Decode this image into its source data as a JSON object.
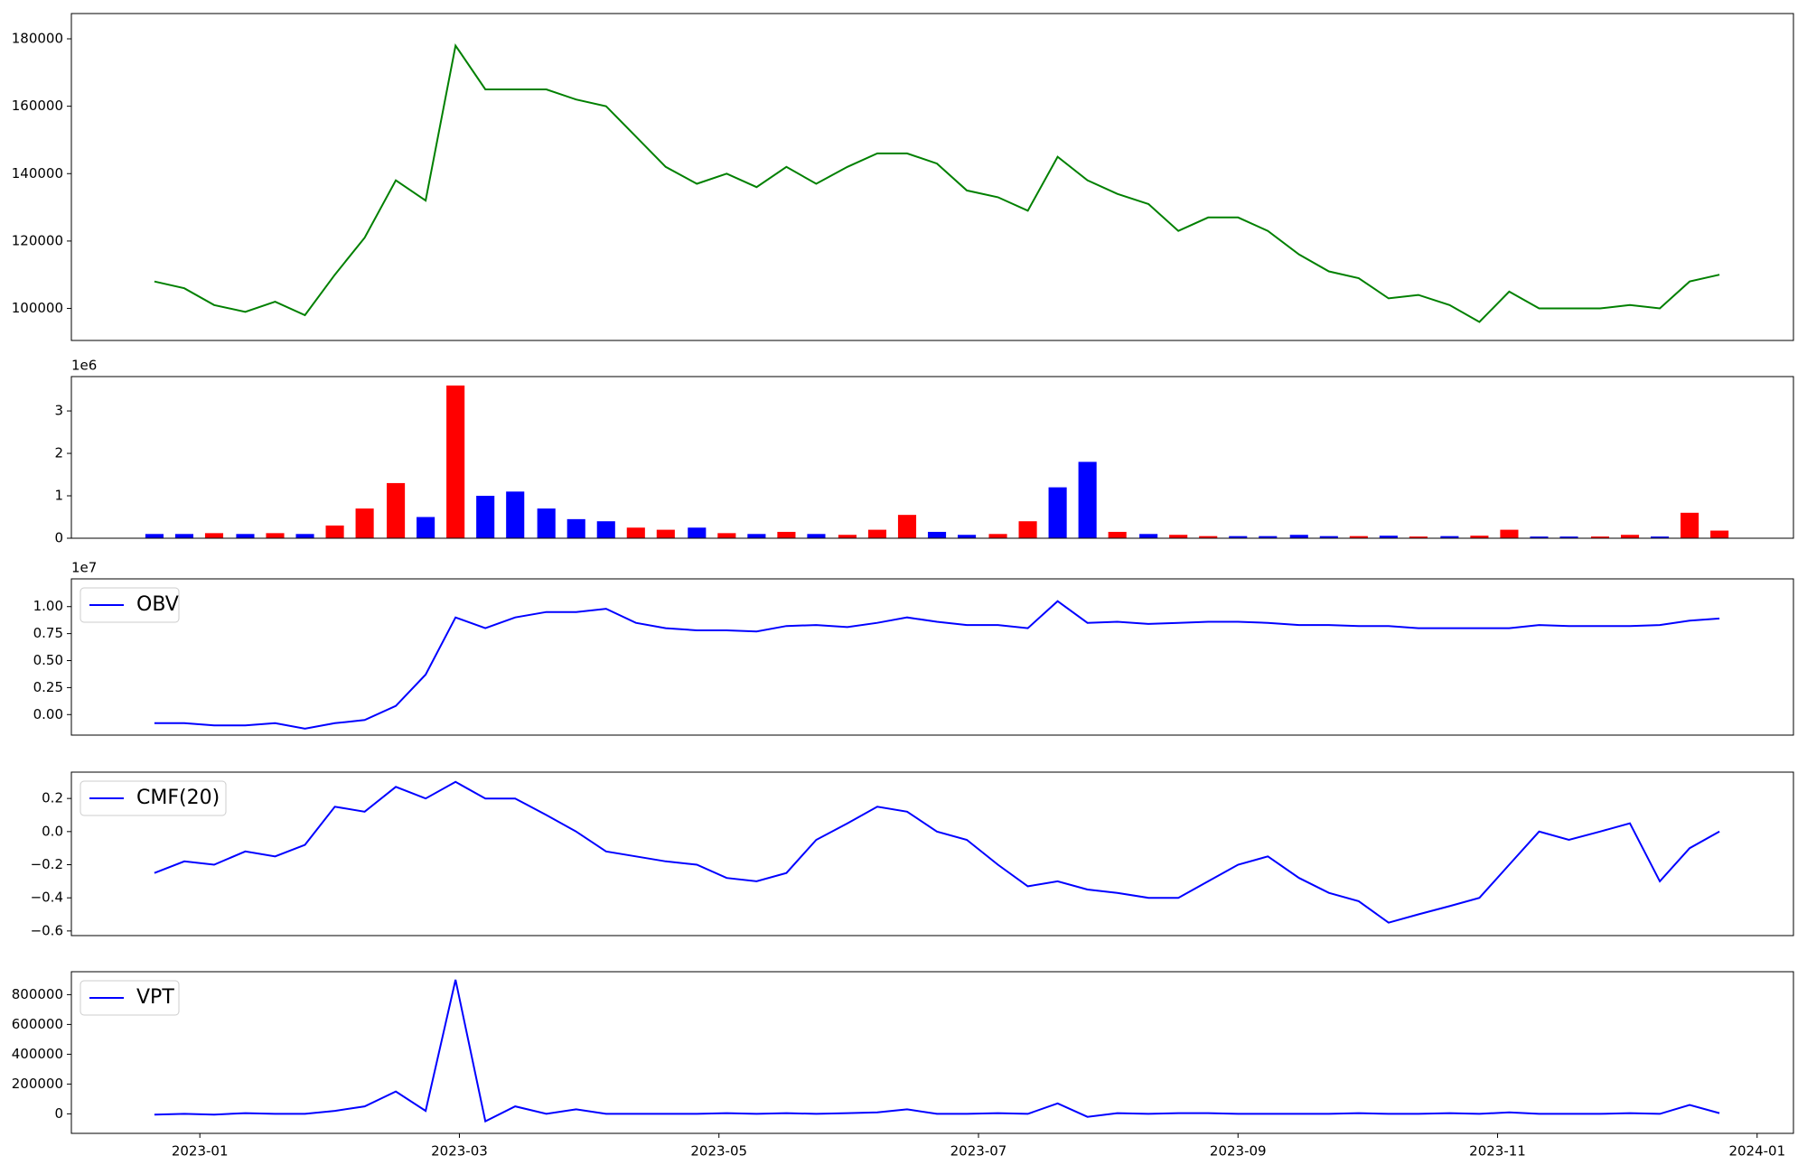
{
  "chart_data": [
    {
      "type": "line",
      "color": "green",
      "x": [
        -0.35,
        -0.12,
        0.11,
        0.35,
        0.58,
        0.81,
        1.04,
        1.27,
        1.51,
        1.74,
        1.97,
        2.2,
        2.43,
        2.67,
        2.9,
        3.13,
        3.36,
        3.59,
        3.83,
        4.06,
        4.29,
        4.52,
        4.75,
        4.99,
        5.22,
        5.45,
        5.68,
        5.91,
        6.15,
        6.38,
        6.61,
        6.84,
        7.07,
        7.31,
        7.54,
        7.77,
        8.0,
        8.23,
        8.47,
        8.7,
        8.93,
        9.16,
        9.39,
        9.63,
        9.86,
        10.09,
        10.32,
        10.55,
        10.79,
        11.02,
        11.25,
        11.48,
        11.71
      ],
      "values": [
        108000,
        106000,
        101000,
        99000,
        102000,
        98000,
        110000,
        121000,
        138000,
        132000,
        178000,
        165000,
        165000,
        165000,
        162000,
        160000,
        151000,
        142000,
        137000,
        140000,
        136000,
        142000,
        137000,
        142000,
        146000,
        146000,
        143000,
        135000,
        133000,
        129000,
        145000,
        138000,
        134000,
        131000,
        123000,
        127000,
        127000,
        123000,
        116000,
        111000,
        109000,
        103000,
        104000,
        101000,
        96000,
        105000,
        100000,
        100000,
        100000,
        101000,
        100000,
        108000,
        110000
      ],
      "xlim": [
        -0.99,
        12.28
      ],
      "ylim": [
        90500,
        187500
      ],
      "yticks": [
        100000,
        120000,
        140000,
        160000,
        180000
      ]
    },
    {
      "type": "bar",
      "y_offset_label": "1e6",
      "x": [
        -0.35,
        -0.12,
        0.11,
        0.35,
        0.58,
        0.81,
        1.04,
        1.27,
        1.51,
        1.74,
        1.97,
        2.2,
        2.43,
        2.67,
        2.9,
        3.13,
        3.36,
        3.59,
        3.83,
        4.06,
        4.29,
        4.52,
        4.75,
        4.99,
        5.22,
        5.45,
        5.68,
        5.91,
        6.15,
        6.38,
        6.61,
        6.84,
        7.07,
        7.31,
        7.54,
        7.77,
        8.0,
        8.23,
        8.47,
        8.7,
        8.93,
        9.16,
        9.39,
        9.63,
        9.86,
        10.09,
        10.32,
        10.55,
        10.79,
        11.02,
        11.25,
        11.48,
        11.71
      ],
      "values": [
        0.1,
        0.1,
        0.12,
        0.1,
        0.12,
        0.1,
        0.3,
        0.7,
        1.3,
        0.5,
        3.6,
        1.0,
        1.1,
        0.7,
        0.45,
        0.4,
        0.25,
        0.2,
        0.25,
        0.12,
        0.1,
        0.15,
        0.1,
        0.08,
        0.2,
        0.55,
        0.15,
        0.08,
        0.1,
        0.4,
        1.2,
        1.8,
        0.15,
        0.1,
        0.08,
        0.05,
        0.05,
        0.05,
        0.08,
        0.05,
        0.05,
        0.06,
        0.04,
        0.05,
        0.06,
        0.2,
        0.04,
        0.04,
        0.04,
        0.08,
        0.04,
        0.6,
        0.18
      ],
      "colors": [
        "blue",
        "blue",
        "red",
        "blue",
        "red",
        "blue",
        "red",
        "red",
        "red",
        "blue",
        "red",
        "blue",
        "blue",
        "blue",
        "blue",
        "blue",
        "red",
        "red",
        "blue",
        "red",
        "blue",
        "red",
        "blue",
        "red",
        "red",
        "red",
        "blue",
        "blue",
        "red",
        "red",
        "blue",
        "blue",
        "red",
        "blue",
        "red",
        "red",
        "blue",
        "blue",
        "blue",
        "blue",
        "red",
        "blue",
        "red",
        "blue",
        "red",
        "red",
        "blue",
        "blue",
        "red",
        "red",
        "blue",
        "red",
        "red"
      ],
      "xlim": [
        -0.99,
        12.28
      ],
      "ylim": [
        0,
        3.81
      ],
      "yticks": [
        0,
        1,
        2,
        3
      ]
    },
    {
      "type": "line",
      "y_offset_label": "1e7",
      "legend": "upper left",
      "x": [
        -0.35,
        -0.12,
        0.11,
        0.35,
        0.58,
        0.81,
        1.04,
        1.27,
        1.51,
        1.74,
        1.97,
        2.2,
        2.43,
        2.67,
        2.9,
        3.13,
        3.36,
        3.59,
        3.83,
        4.06,
        4.29,
        4.52,
        4.75,
        4.99,
        5.22,
        5.45,
        5.68,
        5.91,
        6.15,
        6.38,
        6.61,
        6.84,
        7.07,
        7.31,
        7.54,
        7.77,
        8.0,
        8.23,
        8.47,
        8.7,
        8.93,
        9.16,
        9.39,
        9.63,
        9.86,
        10.09,
        10.32,
        10.55,
        10.79,
        11.02,
        11.25,
        11.48,
        11.71
      ],
      "series": [
        {
          "name": "OBV",
          "color": "blue",
          "values": [
            -0.08,
            -0.08,
            -0.1,
            -0.1,
            -0.08,
            -0.13,
            -0.08,
            -0.05,
            0.08,
            0.37,
            0.9,
            0.8,
            0.9,
            0.95,
            0.95,
            0.98,
            0.85,
            0.8,
            0.78,
            0.78,
            0.77,
            0.82,
            0.83,
            0.81,
            0.85,
            0.9,
            0.86,
            0.83,
            0.83,
            0.8,
            1.05,
            0.85,
            0.86,
            0.84,
            0.85,
            0.86,
            0.86,
            0.85,
            0.83,
            0.83,
            0.82,
            0.82,
            0.8,
            0.8,
            0.8,
            0.8,
            0.83,
            0.82,
            0.82,
            0.82,
            0.83,
            0.87,
            0.89
          ]
        }
      ],
      "xlim": [
        -0.99,
        12.28
      ],
      "ylim": [
        -0.19,
        1.257
      ],
      "yticks": [
        {
          "value": 0,
          "label": "0.00"
        },
        {
          "value": 0.25,
          "label": "0.25"
        },
        {
          "value": 0.5,
          "label": "0.50"
        },
        {
          "value": 0.75,
          "label": "0.75"
        },
        {
          "value": 1,
          "label": "1.00"
        }
      ]
    },
    {
      "type": "line",
      "legend": "upper left",
      "x": [
        -0.35,
        -0.12,
        0.11,
        0.35,
        0.58,
        0.81,
        1.04,
        1.27,
        1.51,
        1.74,
        1.97,
        2.2,
        2.43,
        2.67,
        2.9,
        3.13,
        3.36,
        3.59,
        3.83,
        4.06,
        4.29,
        4.52,
        4.75,
        4.99,
        5.22,
        5.45,
        5.68,
        5.91,
        6.15,
        6.38,
        6.61,
        6.84,
        7.07,
        7.31,
        7.54,
        7.77,
        8.0,
        8.23,
        8.47,
        8.7,
        8.93,
        9.16,
        9.39,
        9.63,
        9.86,
        10.09,
        10.32,
        10.55,
        10.79,
        11.02,
        11.25,
        11.48,
        11.71
      ],
      "series": [
        {
          "name": "CMF(20)",
          "color": "blue",
          "values": [
            -0.25,
            -0.18,
            -0.2,
            -0.12,
            -0.15,
            -0.08,
            0.15,
            0.12,
            0.27,
            0.2,
            0.3,
            0.2,
            0.2,
            0.1,
            0.0,
            -0.12,
            -0.15,
            -0.18,
            -0.2,
            -0.28,
            -0.3,
            -0.25,
            -0.05,
            0.05,
            0.15,
            0.12,
            0.0,
            -0.05,
            -0.2,
            -0.33,
            -0.3,
            -0.35,
            -0.37,
            -0.4,
            -0.4,
            -0.3,
            -0.2,
            -0.15,
            -0.28,
            -0.37,
            -0.42,
            -0.55,
            -0.5,
            -0.45,
            -0.4,
            -0.2,
            0.0,
            -0.05,
            0.0,
            0.05,
            -0.3,
            -0.1,
            0.0
          ]
        }
      ],
      "xlim": [
        -0.99,
        12.28
      ],
      "ylim": [
        -0.628,
        0.359
      ],
      "yticks": [
        {
          "value": -0.6,
          "label": "−0.6"
        },
        {
          "value": -0.4,
          "label": "−0.4"
        },
        {
          "value": -0.2,
          "label": "−0.2"
        },
        {
          "value": 0,
          "label": "0.0"
        },
        {
          "value": 0.2,
          "label": "0.2"
        }
      ]
    },
    {
      "type": "line",
      "legend": "upper left",
      "x": [
        -0.35,
        -0.12,
        0.11,
        0.35,
        0.58,
        0.81,
        1.04,
        1.27,
        1.51,
        1.74,
        1.97,
        2.2,
        2.43,
        2.67,
        2.9,
        3.13,
        3.36,
        3.59,
        3.83,
        4.06,
        4.29,
        4.52,
        4.75,
        4.99,
        5.22,
        5.45,
        5.68,
        5.91,
        6.15,
        6.38,
        6.61,
        6.84,
        7.07,
        7.31,
        7.54,
        7.77,
        8.0,
        8.23,
        8.47,
        8.7,
        8.93,
        9.16,
        9.39,
        9.63,
        9.86,
        10.09,
        10.32,
        10.55,
        10.79,
        11.02,
        11.25,
        11.48,
        11.71
      ],
      "series": [
        {
          "name": "VPT",
          "color": "blue",
          "values": [
            -5000,
            0,
            -5000,
            5000,
            0,
            0,
            20000,
            50000,
            150000,
            20000,
            900000,
            -50000,
            50000,
            0,
            30000,
            0,
            0,
            0,
            0,
            5000,
            0,
            5000,
            0,
            5000,
            10000,
            30000,
            0,
            0,
            5000,
            0,
            70000,
            -20000,
            5000,
            0,
            5000,
            5000,
            0,
            0,
            0,
            0,
            5000,
            0,
            0,
            5000,
            0,
            10000,
            0,
            0,
            0,
            5000,
            0,
            60000,
            5000
          ]
        }
      ],
      "xlim": [
        -0.99,
        12.28
      ],
      "ylim": [
        -131000,
        954000
      ],
      "yticks": [
        0,
        200000,
        400000,
        600000,
        800000
      ],
      "xticks": [
        {
          "value": 0,
          "label": "2023-01"
        },
        {
          "value": 2,
          "label": "2023-03"
        },
        {
          "value": 4,
          "label": "2023-05"
        },
        {
          "value": 6,
          "label": "2023-07"
        },
        {
          "value": 8,
          "label": "2023-09"
        },
        {
          "value": 10,
          "label": "2023-11"
        },
        {
          "value": 12,
          "label": "2024-01"
        }
      ]
    }
  ]
}
